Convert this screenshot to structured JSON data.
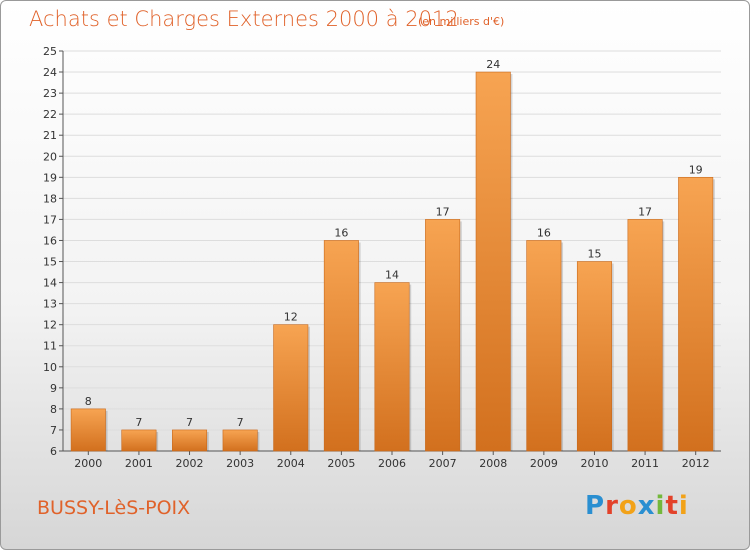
{
  "title": "Achats et Charges Externes 2000 à 2012",
  "unit_note": "(en milliers d'€)",
  "town": "BUSSY-LèS-POIX",
  "logo": {
    "letters": [
      "P",
      "r",
      "o",
      "x",
      "i",
      "t",
      "i"
    ],
    "colors": [
      "#2a8fd1",
      "#e3422a",
      "#f2a218",
      "#2a8fd1",
      "#74b83b",
      "#e3422a",
      "#f2a218"
    ]
  },
  "colors": {
    "bar_light": "#f7a452",
    "bar_dark": "#d2701e",
    "text_accent": "#e0622a",
    "grid": "#dddddd"
  },
  "chart_data": {
    "type": "bar",
    "title": "Achats et Charges Externes 2000 à 2012",
    "categories": [
      "2000",
      "2001",
      "2002",
      "2003",
      "2004",
      "2005",
      "2006",
      "2007",
      "2008",
      "2009",
      "2010",
      "2011",
      "2012"
    ],
    "values": [
      8,
      7,
      7,
      7,
      12,
      16,
      14,
      17,
      24,
      16,
      15,
      17,
      19
    ],
    "ylim": [
      6,
      25
    ],
    "yticks": [
      6,
      7,
      8,
      9,
      10,
      11,
      12,
      13,
      14,
      15,
      16,
      17,
      18,
      19,
      20,
      21,
      22,
      23,
      24,
      25
    ],
    "grid": true,
    "data_labels": true
  }
}
